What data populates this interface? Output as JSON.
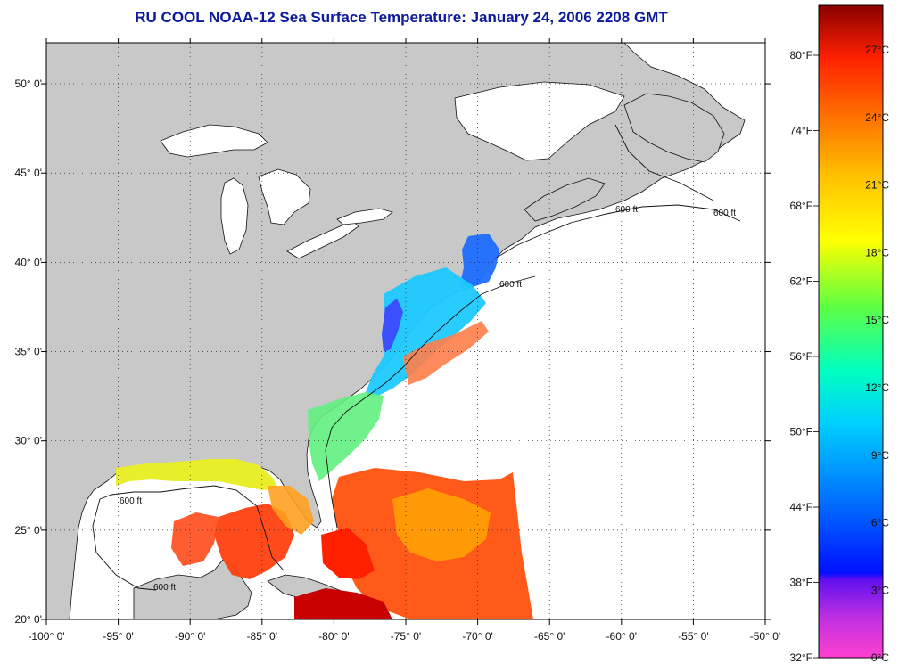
{
  "title": "RU COOL  NOAA-12  Sea Surface Temperature:  January 24, 2006 2208 GMT",
  "axes": {
    "lon_ticks": [
      "-100° 0'",
      "-95° 0'",
      "-90° 0'",
      "-85° 0'",
      "-80° 0'",
      "-75° 0'",
      "-70° 0'",
      "-65° 0'",
      "-60° 0'",
      "-55° 0'",
      "-50° 0'"
    ],
    "lat_ticks": [
      "50° 0'",
      "45° 0'",
      "40° 0'",
      "35° 0'",
      "30° 0'",
      "25° 0'",
      "20° 0'"
    ],
    "lon_range": [
      -100,
      -50
    ],
    "lat_range": [
      20,
      52.3
    ]
  },
  "colorbar": {
    "fahrenheit_labels": [
      "80°F",
      "74°F",
      "68°F",
      "62°F",
      "56°F",
      "50°F",
      "44°F",
      "38°F",
      "32°F"
    ],
    "celsius_labels": [
      "27°C",
      "24°C",
      "21°C",
      "18°C",
      "15°C",
      "12°C",
      "9°C",
      "6°C",
      "3°C",
      "0°C"
    ],
    "colors": [
      "#ff40d0",
      "#a020f0",
      "#0010ff",
      "#0070ff",
      "#00d0ff",
      "#00ffc0",
      "#60ff40",
      "#ffff00",
      "#ffc000",
      "#ff7000",
      "#ff2000",
      "#d00000",
      "#8a0000"
    ]
  },
  "contour_label": "600 ft",
  "colors": {
    "land": "#c8c8c8",
    "title": "#0b1a9c",
    "background": "#ffffff"
  }
}
